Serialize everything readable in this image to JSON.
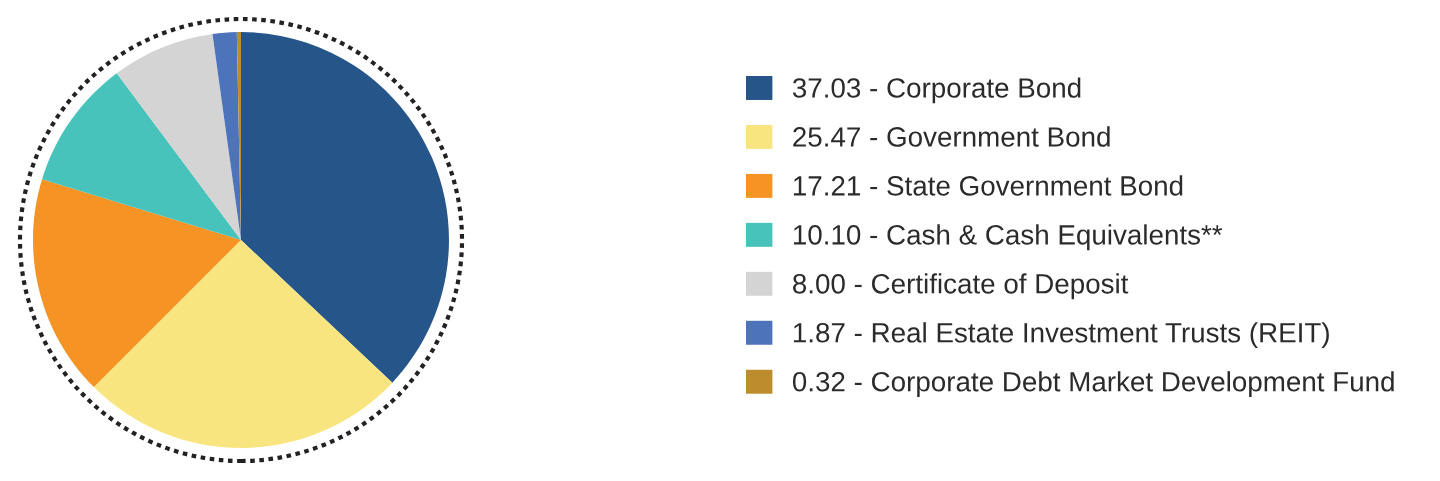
{
  "chart_data": {
    "type": "pie",
    "categories": [
      "37.03 - Corporate Bond",
      "25.47 - Government Bond",
      "17.21 - State Government Bond",
      "10.10 - Cash & Cash Equivalents**",
      "8.00 - Certificate of Deposit",
      "1.87 - Real Estate Investment Trusts (REIT)",
      "0.32 - Corporate Debt Market Development Fund"
    ],
    "values": [
      37.03,
      25.47,
      17.21,
      10.1,
      8.0,
      1.87,
      0.32
    ],
    "colors": [
      "#26558a",
      "#f9e580",
      "#f59324",
      "#48c3bb",
      "#d4d4d4",
      "#4d73bb",
      "#bd8c2c"
    ],
    "legend": "right"
  }
}
